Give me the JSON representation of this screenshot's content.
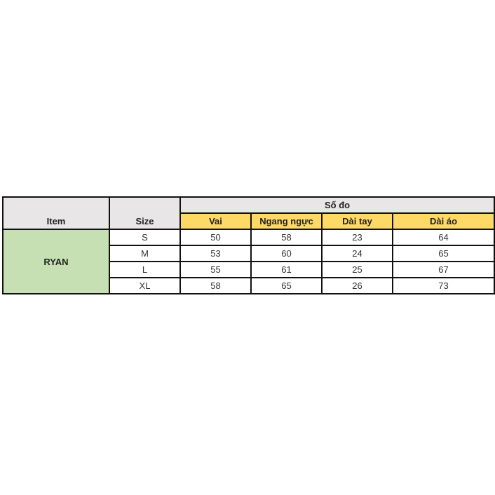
{
  "headers": {
    "item": "Item",
    "size": "Size",
    "group": "Số đo",
    "columns": [
      "Vai",
      "Ngang ngực",
      "Dài tay",
      "Dài áo"
    ]
  },
  "item_name": "RYAN",
  "rows": [
    {
      "size": "S",
      "values": [
        "50",
        "58",
        "23",
        "64"
      ]
    },
    {
      "size": "M",
      "values": [
        "53",
        "60",
        "24",
        "65"
      ]
    },
    {
      "size": "L",
      "values": [
        "55",
        "61",
        "25",
        "67"
      ]
    },
    {
      "size": "XL",
      "values": [
        "58",
        "65",
        "26",
        "73"
      ]
    }
  ],
  "colors": {
    "header_gray": "#e8e6e6",
    "subheader_yellow": "#ffd966",
    "item_green": "#c6e0b4"
  }
}
